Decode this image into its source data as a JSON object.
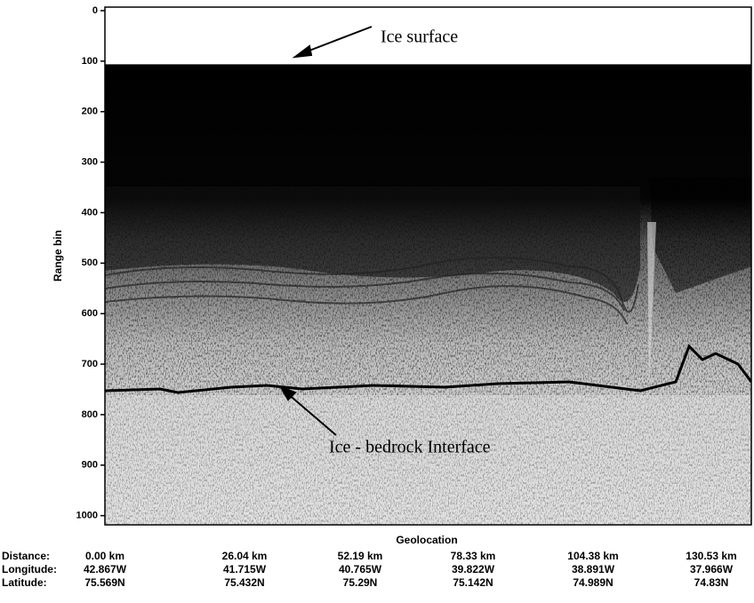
{
  "chart_data": {
    "type": "radargram",
    "y_label": "Range bin",
    "ylim": [
      0,
      1020
    ],
    "yticks": [
      0,
      100,
      200,
      300,
      400,
      500,
      600,
      700,
      800,
      900,
      1000
    ],
    "annotations": [
      "Ice surface",
      "Ice - bedrock Interface"
    ],
    "x_label": "Geolocation",
    "geolocation": [
      {
        "label": "Distance:",
        "values": [
          "0.00 km",
          "26.04 km",
          "52.19 km",
          "78.33 km",
          "104.38 km",
          "130.53 km"
        ]
      },
      {
        "label": "Longitude:",
        "values": [
          "42.867W",
          "41.715W",
          "40.765W",
          "39.822W",
          "38.891W",
          "37.966W"
        ]
      },
      {
        "label": "Latitude:",
        "values": [
          "75.569N",
          "75.432N",
          "75.29N",
          "75.142N",
          "74.989N",
          "74.83N"
        ]
      }
    ]
  }
}
